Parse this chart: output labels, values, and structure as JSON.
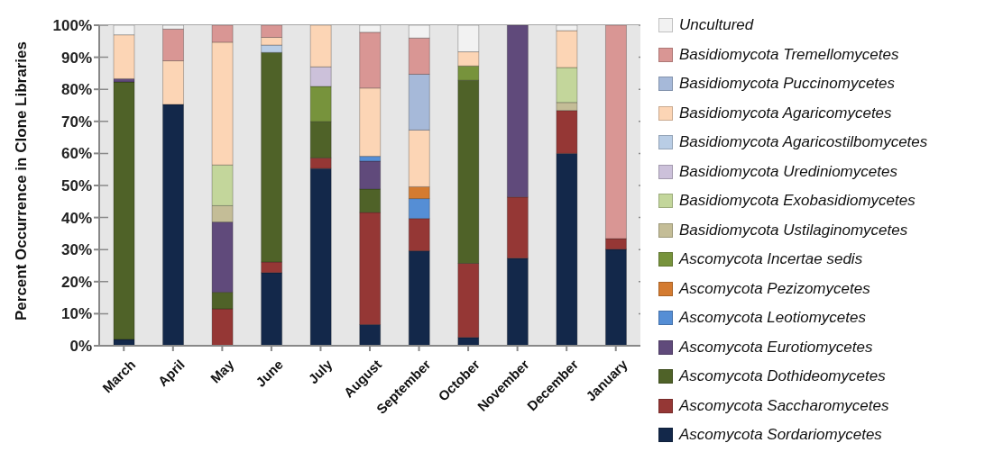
{
  "chart_data": {
    "type": "bar",
    "stacked": true,
    "ylabel": "Percent Occurrence in Clone Libraries",
    "categories": [
      "March",
      "April",
      "May",
      "June",
      "July",
      "August",
      "September",
      "October",
      "November",
      "December",
      "January"
    ],
    "ylim": [
      0,
      100
    ],
    "yticks": [
      {
        "value": 0,
        "label": "0%"
      },
      {
        "value": 10,
        "label": "10%"
      },
      {
        "value": 20,
        "label": "20%"
      },
      {
        "value": 30,
        "label": "30%"
      },
      {
        "value": 40,
        "label": "40%"
      },
      {
        "value": 50,
        "label": "50%"
      },
      {
        "value": 60,
        "label": "60%"
      },
      {
        "value": 70,
        "label": "70%"
      },
      {
        "value": 80,
        "label": "80%"
      },
      {
        "value": 90,
        "label": "90%"
      },
      {
        "value": 100,
        "label": "100%"
      }
    ],
    "grid": "y",
    "legend": "right",
    "series": [
      {
        "name": "Ascomycota Sordariomycetes",
        "color": "#13284a",
        "values": [
          2,
          75.3,
          null,
          22.8,
          55.3,
          6.6,
          29.6,
          2.6,
          27.3,
          60,
          30.1
        ]
      },
      {
        "name": "Ascomycota Saccharomycetes",
        "color": "#953735",
        "values": [
          null,
          null,
          11.5,
          3.3,
          3.3,
          35,
          10.1,
          23.1,
          19.1,
          13.4,
          3.3
        ]
      },
      {
        "name": "Ascomycota Dothideomycetes",
        "color": "#4f6228",
        "values": [
          80.3,
          null,
          5.2,
          65.4,
          11.3,
          7.3,
          null,
          57.1,
          null,
          null,
          null
        ]
      },
      {
        "name": "Ascomycota Eurotiomycetes",
        "color": "#604a7b",
        "values": [
          1,
          null,
          21.9,
          null,
          null,
          8.7,
          null,
          null,
          53.6,
          null,
          null
        ]
      },
      {
        "name": "Ascomycota Leotiomycetes",
        "color": "#558ed5",
        "values": [
          null,
          null,
          null,
          null,
          null,
          1.5,
          6.2,
          null,
          null,
          null,
          null
        ]
      },
      {
        "name": "Ascomycota Pezizomycetes",
        "color": "#d47b30",
        "values": [
          null,
          null,
          null,
          null,
          null,
          null,
          3.7,
          null,
          null,
          null,
          null
        ]
      },
      {
        "name": "Ascomycota Incertae sedis",
        "color": "#77933c",
        "values": [
          null,
          null,
          null,
          null,
          11,
          null,
          null,
          4.5,
          null,
          null,
          null
        ]
      },
      {
        "name": "Basidiomycota Ustilaginomycetes",
        "color": "#c4bd97",
        "values": [
          null,
          null,
          5.1,
          null,
          null,
          null,
          null,
          null,
          null,
          2.5,
          null
        ]
      },
      {
        "name": "Basidiomycota Exobasidiomycetes",
        "color": "#c3d69b",
        "values": [
          null,
          null,
          12.7,
          null,
          null,
          null,
          null,
          null,
          null,
          10.9,
          null
        ]
      },
      {
        "name": "Basidiomycota Urediniomycetes",
        "color": "#ccc1da",
        "values": [
          null,
          null,
          null,
          null,
          6.1,
          null,
          null,
          null,
          null,
          null,
          null
        ]
      },
      {
        "name": "Basidiomycota Agaricostilbomycetes",
        "color": "#b9cde5",
        "values": [
          null,
          null,
          null,
          2.3,
          null,
          null,
          null,
          null,
          null,
          null,
          null
        ]
      },
      {
        "name": "Basidiomycota Agaricomycetes",
        "color": "#fcd5b5",
        "values": [
          13.7,
          13.6,
          38.3,
          2.4,
          13,
          21.3,
          17.7,
          4.4,
          null,
          11.5,
          null
        ]
      },
      {
        "name": "Basidiomycota Puccinomycetes",
        "color": "#a6b9d9",
        "values": [
          null,
          null,
          null,
          null,
          null,
          null,
          17.4,
          null,
          null,
          null,
          null
        ]
      },
      {
        "name": "Basidiomycota Tremellomycetes",
        "color": "#d99694",
        "values": [
          null,
          9.9,
          5.3,
          3.8,
          null,
          17.4,
          11.3,
          null,
          null,
          null,
          66.6
        ]
      },
      {
        "name": "Uncultured",
        "color": "#f2f2f2",
        "values": [
          3,
          1.2,
          null,
          null,
          null,
          2.2,
          4,
          8.3,
          null,
          1.7,
          null
        ]
      }
    ]
  }
}
